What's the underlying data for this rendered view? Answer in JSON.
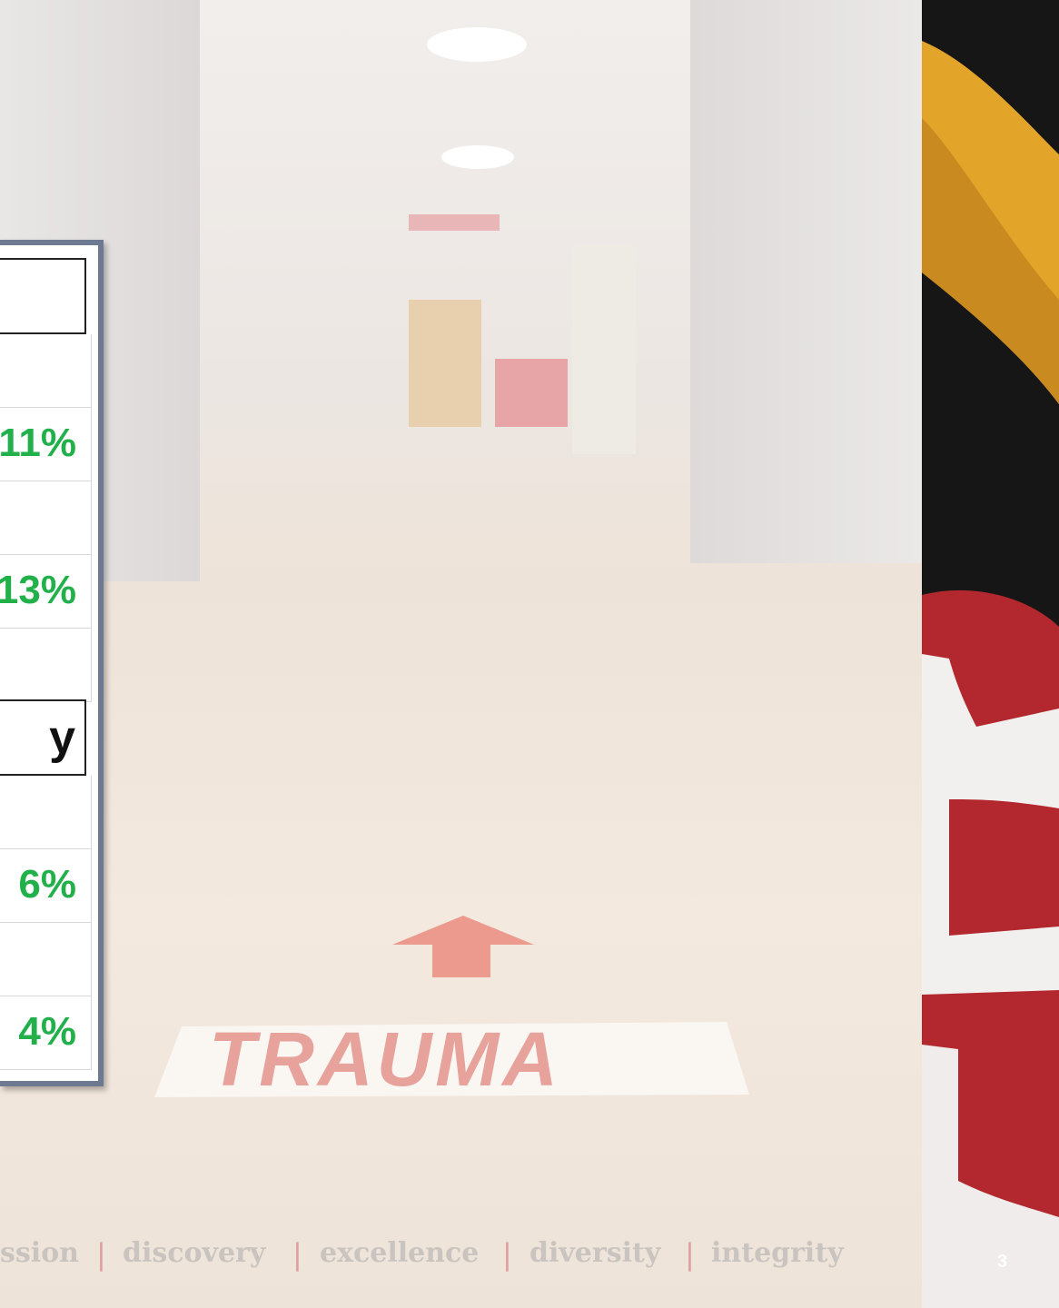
{
  "table": {
    "section_1": {
      "values": [
        "11%",
        "13%"
      ]
    },
    "section_2": {
      "header": "y",
      "values": [
        "6%",
        "4%"
      ]
    }
  },
  "photo_sign": "TRAUMA",
  "footer": {
    "items": [
      "ssion",
      "discovery",
      "excellence",
      "diversity",
      "integrity"
    ],
    "separator": "|"
  },
  "page_number": "3"
}
